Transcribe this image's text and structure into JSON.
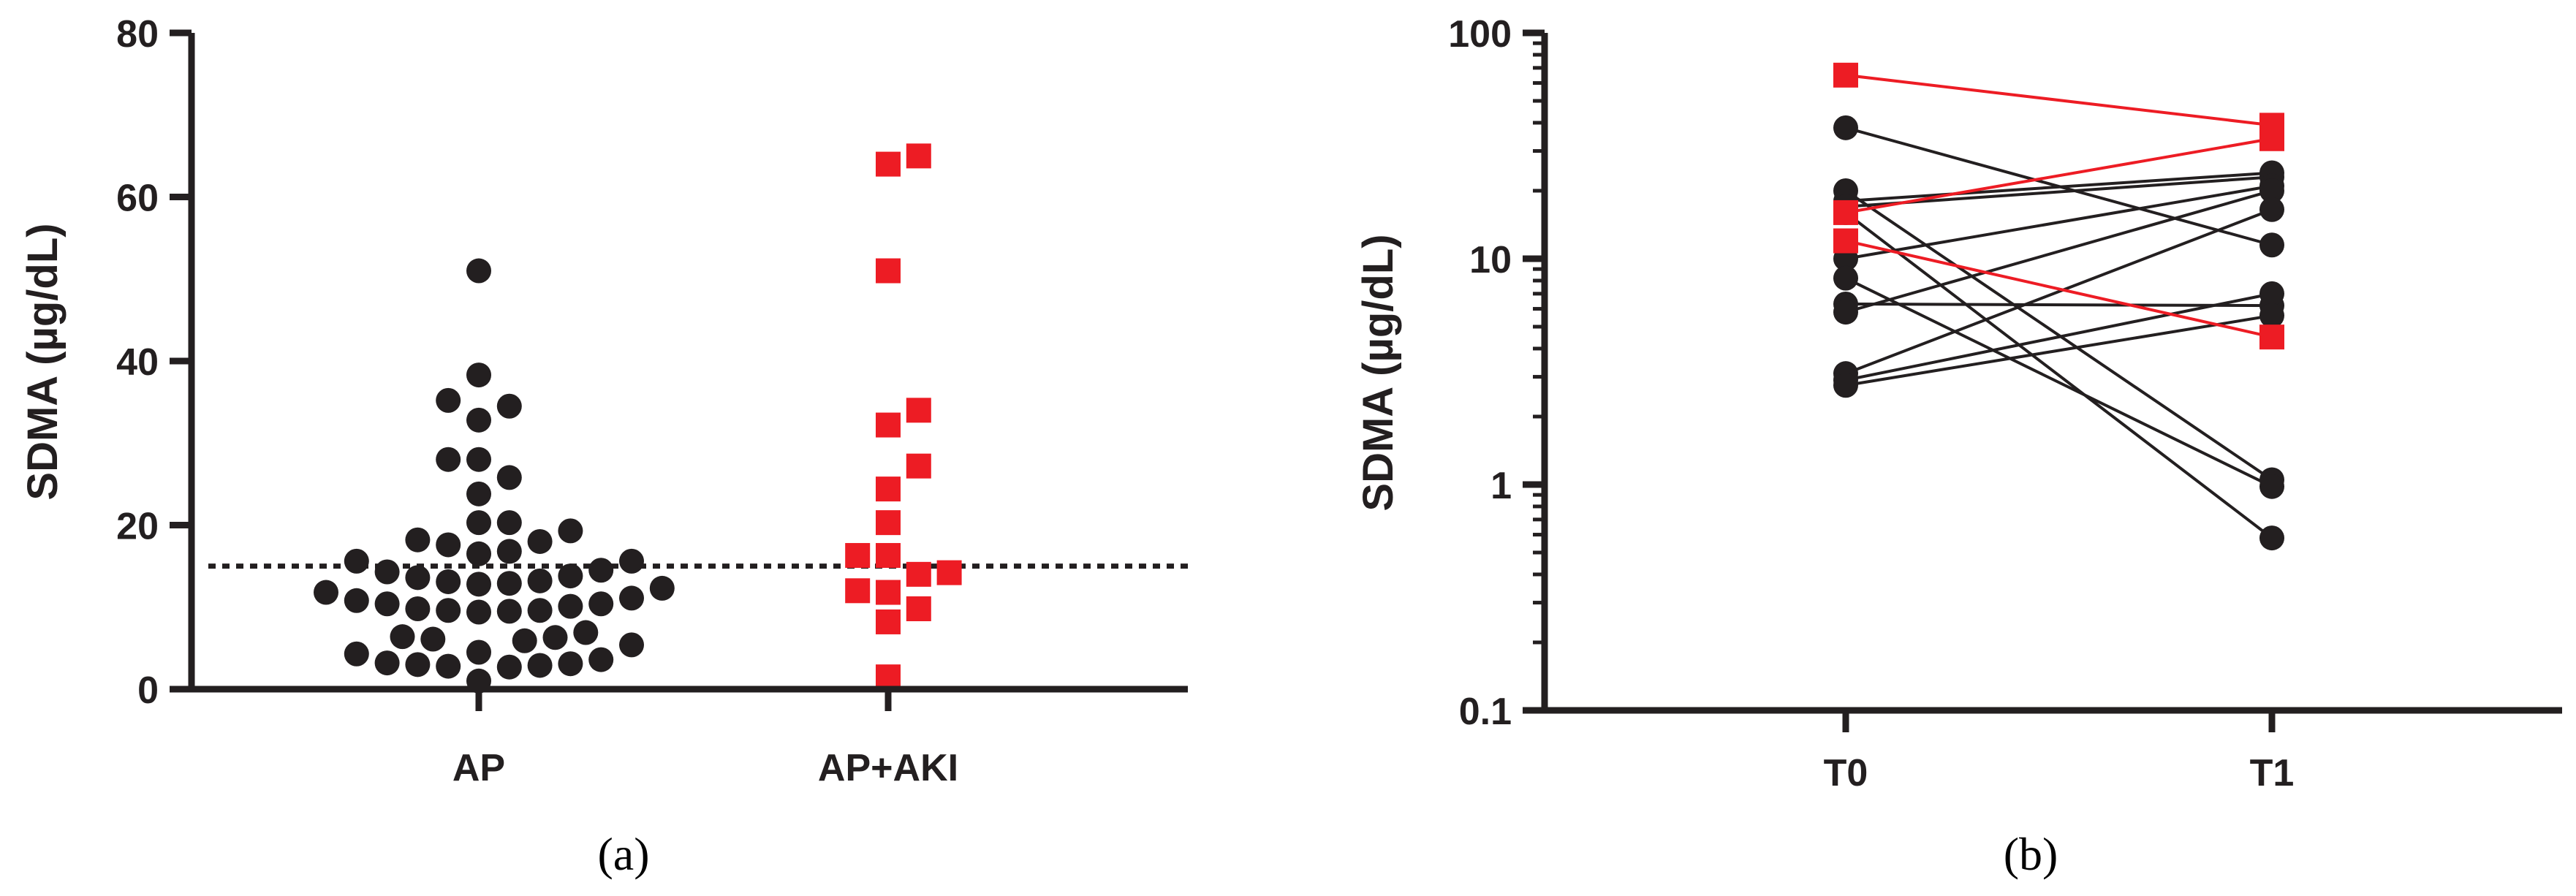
{
  "chart_data": [
    {
      "type": "scatter",
      "panel_label": "(a)",
      "ylabel": "SDMA (µg/dL)",
      "ylim": [
        0,
        80
      ],
      "yticks": [
        0,
        20,
        40,
        60,
        80
      ],
      "ytick_labels": [
        "0",
        "20",
        "40",
        "60",
        "80"
      ],
      "categories": [
        "AP",
        "AP+AKI"
      ],
      "reference_line": {
        "y": 15,
        "style": "dotted"
      },
      "colors": {
        "AP": "#231f20",
        "AP+AKI": "#ed1c24"
      },
      "series": [
        {
          "category": "AP",
          "marker": "circle",
          "values": [
            51,
            38.3,
            35.2,
            34.5,
            32.8,
            28,
            28,
            25.8,
            23.8,
            20.3,
            20.3,
            19.3,
            18.2,
            18,
            17.6,
            16.8,
            16.5,
            15.6,
            15.6,
            14.5,
            14.3,
            13.8,
            13.6,
            13.2,
            13.1,
            12.9,
            12.8,
            12.3,
            11.8,
            11.1,
            10.8,
            10.4,
            10.4,
            10.1,
            9.8,
            9.6,
            9.6,
            9.5,
            9.4,
            6.9,
            6.4,
            6.3,
            6.1,
            5.9,
            5.4,
            4.5,
            4.3,
            3.6,
            3.2,
            3.1,
            3,
            2.9,
            2.8,
            2.7,
            1
          ]
        },
        {
          "category": "AP+AKI",
          "marker": "square",
          "values": [
            65,
            64,
            51,
            34,
            32.2,
            27.2,
            24.4,
            20.3,
            16.3,
            16.3,
            14.2,
            14,
            12,
            11.8,
            9.8,
            8.2,
            1.5
          ]
        }
      ]
    },
    {
      "type": "line",
      "panel_label": "(b)",
      "ylabel": "SDMA (µg/dL)",
      "yscale": "log",
      "ylim": [
        0.1,
        100
      ],
      "yticks": [
        0.1,
        1,
        10,
        100
      ],
      "ytick_labels": [
        "0.1",
        "1",
        "10",
        "100"
      ],
      "x": [
        "T0",
        "T1"
      ],
      "colors": {
        "AKI": "#ed1c24",
        "no_AKI": "#231f20"
      },
      "series": [
        {
          "group": "AKI",
          "marker": "square",
          "values": [
            65,
            39
          ]
        },
        {
          "group": "AKI",
          "marker": "square",
          "values": [
            16,
            34
          ]
        },
        {
          "group": "AKI",
          "marker": "square",
          "values": [
            12,
            4.5
          ]
        },
        {
          "group": "no_AKI",
          "marker": "circle",
          "values": [
            38,
            11.5
          ]
        },
        {
          "group": "no_AKI",
          "marker": "circle",
          "values": [
            20,
            1.05
          ]
        },
        {
          "group": "no_AKI",
          "marker": "circle",
          "values": [
            18,
            24
          ]
        },
        {
          "group": "no_AKI",
          "marker": "circle",
          "values": [
            17,
            23
          ]
        },
        {
          "group": "no_AKI",
          "marker": "circle",
          "values": [
            16,
            0.58
          ]
        },
        {
          "group": "no_AKI",
          "marker": "circle",
          "values": [
            10,
            21
          ]
        },
        {
          "group": "no_AKI",
          "marker": "circle",
          "values": [
            8.2,
            0.98
          ]
        },
        {
          "group": "no_AKI",
          "marker": "circle",
          "values": [
            6.3,
            6.2
          ]
        },
        {
          "group": "no_AKI",
          "marker": "circle",
          "values": [
            5.8,
            20
          ]
        },
        {
          "group": "no_AKI",
          "marker": "circle",
          "values": [
            3.1,
            16.5
          ]
        },
        {
          "group": "no_AKI",
          "marker": "circle",
          "values": [
            2.9,
            7
          ]
        },
        {
          "group": "no_AKI",
          "marker": "circle",
          "values": [
            2.75,
            5.6
          ]
        }
      ]
    }
  ]
}
